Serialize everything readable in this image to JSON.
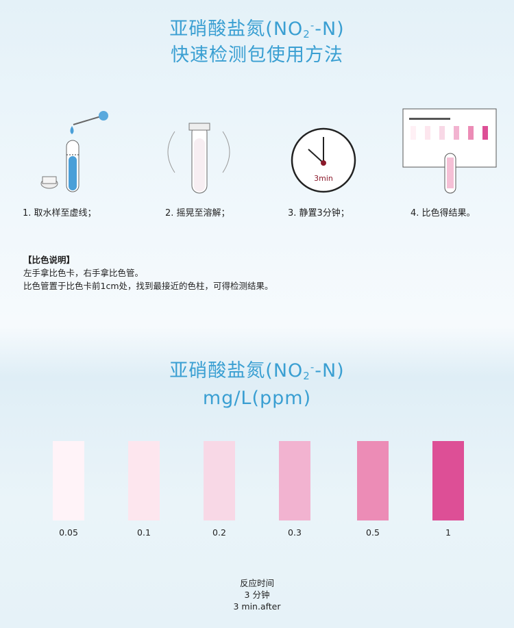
{
  "header": {
    "title_prefix": "亚硝酸盐氮(NO",
    "title_sub": "2",
    "title_sup": "-",
    "title_suffix": "-N)",
    "subtitle": "快速检测包使用方法"
  },
  "steps": [
    {
      "label": "1. 取水样至虚线；",
      "icon": "test-tube-dropper-icon"
    },
    {
      "label": "2. 摇晃至溶解；",
      "icon": "shaking-tube-icon"
    },
    {
      "label": "3. 静置3分钟；",
      "icon": "clock-icon",
      "clock_text": "3min"
    },
    {
      "label": "4. 比色得结果。",
      "icon": "color-card-compare-icon"
    }
  ],
  "notes": {
    "heading": "【比色说明】",
    "lines": [
      "左手拿比色卡，右手拿比色管。",
      "比色管置于比色卡前1cm处，找到最接近的色柱，可得检测结果。"
    ]
  },
  "chart_section": {
    "title_prefix": "亚硝酸盐氮(NO",
    "title_sub": "2",
    "title_sup": "-",
    "title_suffix": "-N)",
    "unit": "mg/L(ppm)"
  },
  "color_scale": [
    {
      "value": "0.05",
      "color": "#fff3f8"
    },
    {
      "value": "0.1",
      "color": "#fde6ee"
    },
    {
      "value": "0.2",
      "color": "#f8d8e6"
    },
    {
      "value": "0.3",
      "color": "#f2b3d0"
    },
    {
      "value": "0.5",
      "color": "#ec8cb6"
    },
    {
      "value": "1",
      "color": "#dd4f96"
    }
  ],
  "footer": {
    "line1": "反应时间",
    "line2": "3  分钟",
    "line3": "3  min.after"
  },
  "colors": {
    "title": "#3a9fd2",
    "clock_hand": "#8b1a2b"
  }
}
